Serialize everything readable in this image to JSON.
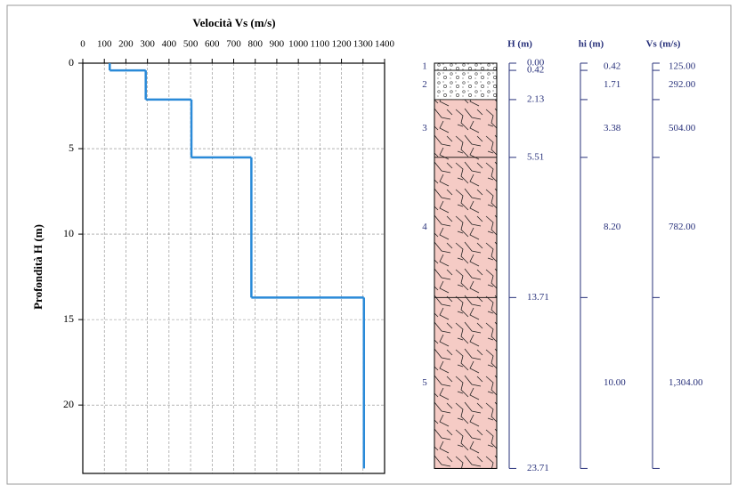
{
  "chart_data": {
    "type": "step",
    "title": "Velocità Vs (m/s)",
    "y_label": "Profondità H (m)",
    "xlim": [
      0,
      1400
    ],
    "xticks": [
      0,
      100,
      200,
      300,
      400,
      500,
      600,
      700,
      800,
      900,
      1000,
      1100,
      1200,
      1300,
      1400
    ],
    "ylim": [
      0,
      24
    ],
    "yticks": [
      0,
      5,
      10,
      15,
      20
    ],
    "grid": true,
    "color": "#2a8ad8",
    "column_headers": [
      "H (m)",
      "hi (m)",
      "Vs (m/s)"
    ],
    "layer_labels": [
      "1",
      "2",
      "3",
      "4",
      "5"
    ],
    "layer_colors": [
      "#ffffff",
      "#ffffff",
      "#f5cbc5",
      "#f5cbc5",
      "#f5cbc5"
    ],
    "depths": [
      {
        "value": 0,
        "label": "0.00"
      },
      {
        "value": 0.42,
        "label": "0.42"
      },
      {
        "value": 2.13,
        "label": "2.13"
      },
      {
        "value": 5.51,
        "label": "5.51"
      },
      {
        "value": 13.71,
        "label": "13.71"
      },
      {
        "value": 23.71,
        "label": "23.71"
      }
    ],
    "thickness": [
      {
        "value": 0.42,
        "label": "0.42"
      },
      {
        "value": 1.71,
        "label": "1.71"
      },
      {
        "value": 3.38,
        "label": "3.38"
      },
      {
        "value": 8.2,
        "label": "8.20"
      },
      {
        "value": 10,
        "label": "10.00"
      }
    ],
    "vs": [
      {
        "value": 125,
        "label": "125.00"
      },
      {
        "value": 292,
        "label": "292.00"
      },
      {
        "value": 504,
        "label": "504.00"
      },
      {
        "value": 782,
        "label": "782.00"
      },
      {
        "value": 1304,
        "label": "1,304.00"
      }
    ]
  }
}
